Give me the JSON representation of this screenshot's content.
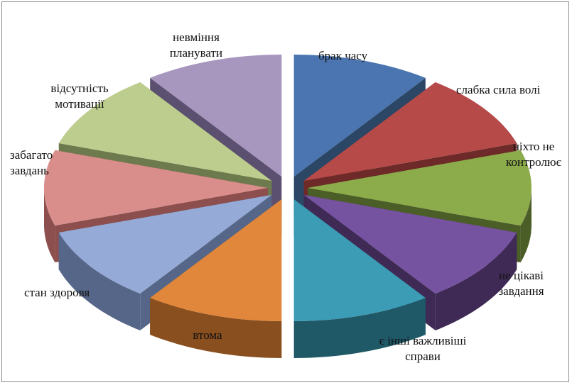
{
  "chart_data": {
    "type": "pie",
    "variant": "exploded-3d",
    "title": "",
    "legend": "none",
    "categories": [
      "брак часу",
      "слабка сила волі",
      "ніхто не контролює",
      "не цікаві завдання",
      "є інші важливіші справи",
      "втома",
      "стан здоровя",
      "забагато завдань",
      "відсутність мотивації",
      "невміння планувати"
    ],
    "labels": {
      "l0": "брак часу",
      "l1": "слабка сила волі",
      "l2a": "ніхто не",
      "l2b": "контролює",
      "l3a": "не цікаві",
      "l3b": "завдання",
      "l4a": "є інші важливіші",
      "l4b": "справи",
      "l5": "втома",
      "l6": "стан здоровя",
      "l7a": "забагато",
      "l7b": "завдань",
      "l8a": "відсутність",
      "l8b": "мотивації",
      "l9a": "невміння",
      "l9b": "планувати"
    },
    "values": [
      10,
      10,
      10,
      10,
      10,
      10,
      10,
      10,
      10,
      10
    ],
    "colors": [
      "#4a75b0",
      "#b54a48",
      "#8cab4b",
      "#7653a0",
      "#3c9bb5",
      "#e0873c",
      "#95aad6",
      "#d98e8c",
      "#bccd8e",
      "#a797bf"
    ],
    "side_colors": [
      "#2c4666",
      "#6e2a28",
      "#4c5e28",
      "#3e2a55",
      "#1f5866",
      "#8a4f1e",
      "#556688",
      "#8c4f4d",
      "#6d7a4d",
      "#5c5070"
    ]
  }
}
